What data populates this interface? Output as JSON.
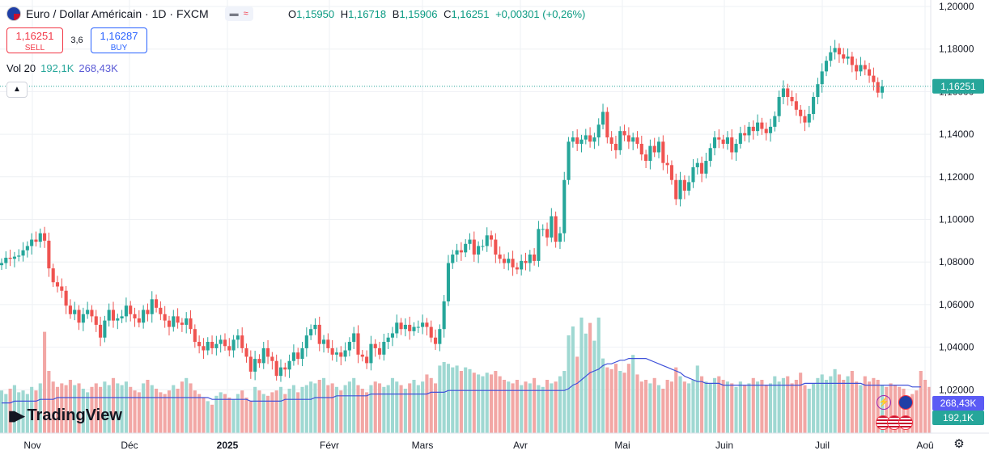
{
  "header": {
    "title": "Euro / Dollar Américain · 1D · FXCM",
    "ohlc": {
      "o_label": "O",
      "o": "1,15950",
      "h_label": "H",
      "h": "1,16718",
      "b_label": "B",
      "b": "1,15906",
      "c_label": "C",
      "c": "1,16251",
      "change": "+0,00301 (+0,26%)"
    }
  },
  "trade": {
    "sell_price": "1,16251",
    "sell_label": "SELL",
    "spread": "3,6",
    "buy_price": "1,16287",
    "buy_label": "BUY"
  },
  "volume": {
    "label": "Vol 20",
    "value": "192,1K",
    "ma": "268,43K"
  },
  "brand": {
    "name": "TradingView"
  },
  "colors": {
    "up": "#26a69a",
    "down": "#ef5350",
    "vol_up": "#9fd8d2",
    "vol_down": "#f2a7a5",
    "ma": "#3f51d9",
    "price_tag": "#26a69a",
    "vol_tag": "#26a69a",
    "ma_tag": "#5b5bf5",
    "grid": "#eef0f4"
  },
  "chart_data": {
    "type": "candlestick",
    "symbol": "EURUSD",
    "interval": "1D",
    "y_ticks": [
      "1,20000",
      "1,18000",
      "1,16000",
      "1,14000",
      "1,12000",
      "1,10000",
      "1,08000",
      "1,06000",
      "1,04000",
      "1,02000"
    ],
    "y_range": [
      1.0,
      1.2
    ],
    "x_labels": [
      "Nov",
      "Déc",
      "2025",
      "Févr",
      "Mars",
      "Avr",
      "Mai",
      "Juin",
      "Juil",
      "Aoû"
    ],
    "last_price": "1,16251",
    "vol_tag": "192,1K",
    "ma_tag": "268,43K",
    "closes": [
      1.0795,
      1.082,
      1.0815,
      1.0825,
      1.083,
      1.0855,
      1.0875,
      1.0905,
      1.0895,
      1.0935,
      1.09,
      1.077,
      1.0705,
      1.0685,
      1.0665,
      1.0595,
      1.0555,
      1.0575,
      1.0515,
      1.0555,
      1.0575,
      1.0545,
      1.0505,
      1.0445,
      1.0525,
      1.0575,
      1.0525,
      1.0535,
      1.0545,
      1.0595,
      1.0555,
      1.0535,
      1.0515,
      1.0575,
      1.0555,
      1.0625,
      1.0585,
      1.0555,
      1.0525,
      1.0495,
      1.0545,
      1.0515,
      1.0505,
      1.0535,
      1.0485,
      1.0425,
      1.0405,
      1.0385,
      1.0425,
      1.0395,
      1.0415,
      1.0435,
      1.0405,
      1.0385,
      1.0435,
      1.0455,
      1.0395,
      1.0355,
      1.0285,
      1.0345,
      1.0325,
      1.0395,
      1.0355,
      1.0335,
      1.0265,
      1.0305,
      1.0295,
      1.0335,
      1.0375,
      1.0345,
      1.0395,
      1.0455,
      1.0485,
      1.0505,
      1.0415,
      1.0435,
      1.0395,
      1.0365,
      1.0375,
      1.0355,
      1.0385,
      1.0425,
      1.0465,
      1.0365,
      1.0355,
      1.0325,
      1.0415,
      1.0395,
      1.0365,
      1.0425,
      1.0445,
      1.0465,
      1.0515,
      1.0485,
      1.0505,
      1.0475,
      1.0495,
      1.0495,
      1.0515,
      1.0495,
      1.0445,
      1.0415,
      1.0485,
      1.0615,
      1.0795,
      1.0835,
      1.0855,
      1.0845,
      1.0885,
      1.0905,
      1.0835,
      1.0875,
      1.0875,
      1.0925,
      1.0905,
      1.0835,
      1.0815,
      1.0795,
      1.0815,
      1.0775,
      1.0765,
      1.0805,
      1.0795,
      1.0835,
      1.0805,
      1.0955,
      1.0955,
      1.0915,
      1.1015,
      1.0895,
      1.0935,
      1.1185,
      1.1365,
      1.1385,
      1.1355,
      1.1375,
      1.1395,
      1.1365,
      1.1385,
      1.1445,
      1.1505,
      1.1385,
      1.1355,
      1.1325,
      1.1415,
      1.1395,
      1.1365,
      1.1385,
      1.1355,
      1.1305,
      1.1275,
      1.1345,
      1.1315,
      1.1365,
      1.1265,
      1.1255,
      1.1185,
      1.1095,
      1.1185,
      1.1135,
      1.1175,
      1.1245,
      1.1265,
      1.1215,
      1.1275,
      1.1335,
      1.1385,
      1.1375,
      1.1355,
      1.1385,
      1.1315,
      1.1355,
      1.1405,
      1.1395,
      1.1435,
      1.1415,
      1.1455,
      1.1425,
      1.1405,
      1.1435,
      1.1485,
      1.1575,
      1.1615,
      1.1575,
      1.1555,
      1.1515,
      1.1485,
      1.1455,
      1.1495,
      1.1575,
      1.1635,
      1.1695,
      1.1745,
      1.1785,
      1.1805,
      1.1775,
      1.1755,
      1.1765,
      1.1725,
      1.1695,
      1.1725,
      1.1705,
      1.1675,
      1.1645,
      1.1595,
      1.1625
    ],
    "volumes": [
      24,
      22,
      25,
      27,
      23,
      24,
      22,
      26,
      24,
      28,
      57,
      35,
      29,
      26,
      28,
      27,
      30,
      27,
      28,
      25,
      23,
      26,
      28,
      26,
      29,
      27,
      31,
      28,
      27,
      29,
      26,
      24,
      23,
      28,
      30,
      27,
      25,
      23,
      22,
      24,
      27,
      25,
      29,
      31,
      28,
      24,
      22,
      20,
      18,
      16,
      21,
      23,
      22,
      20,
      19,
      22,
      24,
      20,
      18,
      26,
      24,
      22,
      21,
      23,
      24,
      26,
      22,
      25,
      27,
      23,
      26,
      27,
      29,
      28,
      30,
      31,
      27,
      28,
      26,
      24,
      27,
      29,
      31,
      27,
      25,
      23,
      27,
      29,
      28,
      26,
      27,
      31,
      29,
      27,
      25,
      28,
      30,
      27,
      29,
      33,
      31,
      28,
      38,
      40,
      39,
      37,
      38,
      35,
      37,
      36,
      34,
      33,
      32,
      34,
      33,
      35,
      32,
      30,
      29,
      28,
      30,
      27,
      29,
      28,
      31,
      27,
      26,
      30,
      28,
      29,
      32,
      35,
      55,
      60,
      43,
      65,
      56,
      62,
      52,
      65,
      42,
      37,
      36,
      39,
      35,
      34,
      39,
      44,
      33,
      29,
      30,
      28,
      31,
      27,
      25,
      30,
      29,
      37,
      32,
      29,
      28,
      30,
      38,
      32,
      29,
      28,
      31,
      32,
      30,
      29,
      28,
      26,
      29,
      27,
      28,
      31,
      29,
      30,
      27,
      28,
      32,
      29,
      31,
      32,
      28,
      30,
      34,
      27,
      25,
      28,
      31,
      33,
      30,
      32,
      36,
      33,
      30,
      32,
      35,
      29,
      27,
      32,
      29,
      31,
      30,
      27,
      26,
      28,
      27,
      26,
      25,
      21,
      22,
      24,
      35,
      30,
      26
    ],
    "volume_ma": [
      17,
      17,
      17,
      18,
      18,
      18,
      18,
      18,
      18,
      19,
      19,
      19,
      19,
      20,
      20,
      20,
      20,
      20,
      20,
      20,
      20,
      20,
      20,
      20,
      20,
      20,
      20,
      20,
      20,
      20,
      20,
      20,
      20,
      20,
      20,
      20,
      20,
      20,
      20,
      20,
      20,
      20,
      20,
      20,
      20,
      20,
      20,
      20,
      20,
      19,
      19,
      19,
      19,
      19,
      19,
      19,
      19,
      19,
      18,
      18,
      18,
      18,
      18,
      18,
      18,
      18,
      19,
      19,
      19,
      19,
      19,
      19,
      19,
      20,
      20,
      20,
      20,
      20,
      21,
      21,
      21,
      21,
      21,
      21,
      21,
      21,
      22,
      22,
      22,
      22,
      22,
      22,
      22,
      22,
      22,
      22,
      22,
      22,
      22,
      22,
      23,
      23,
      23,
      23,
      24,
      24,
      24,
      24,
      24,
      24,
      24,
      24,
      24,
      24,
      24,
      24,
      24,
      24,
      24,
      24,
      24,
      24,
      24,
      24,
      24,
      24,
      24,
      24,
      24,
      24,
      24,
      24,
      25,
      27,
      28,
      30,
      32,
      34,
      35,
      36,
      38,
      39,
      39,
      40,
      41,
      41,
      42,
      42,
      42,
      42,
      42,
      41,
      40,
      39,
      38,
      37,
      36,
      35,
      34,
      32,
      31,
      30,
      29,
      29,
      28,
      28,
      28,
      28,
      27,
      27,
      27,
      27,
      27,
      27,
      27,
      27,
      27,
      27,
      27,
      27,
      27,
      27,
      27,
      27,
      27,
      27,
      27,
      28,
      28,
      28,
      28,
      28,
      28,
      28,
      28,
      28,
      28,
      28,
      28,
      28,
      28,
      27,
      27,
      27,
      27,
      27,
      27,
      27,
      27,
      27,
      27,
      27,
      26,
      26,
      26
    ]
  }
}
